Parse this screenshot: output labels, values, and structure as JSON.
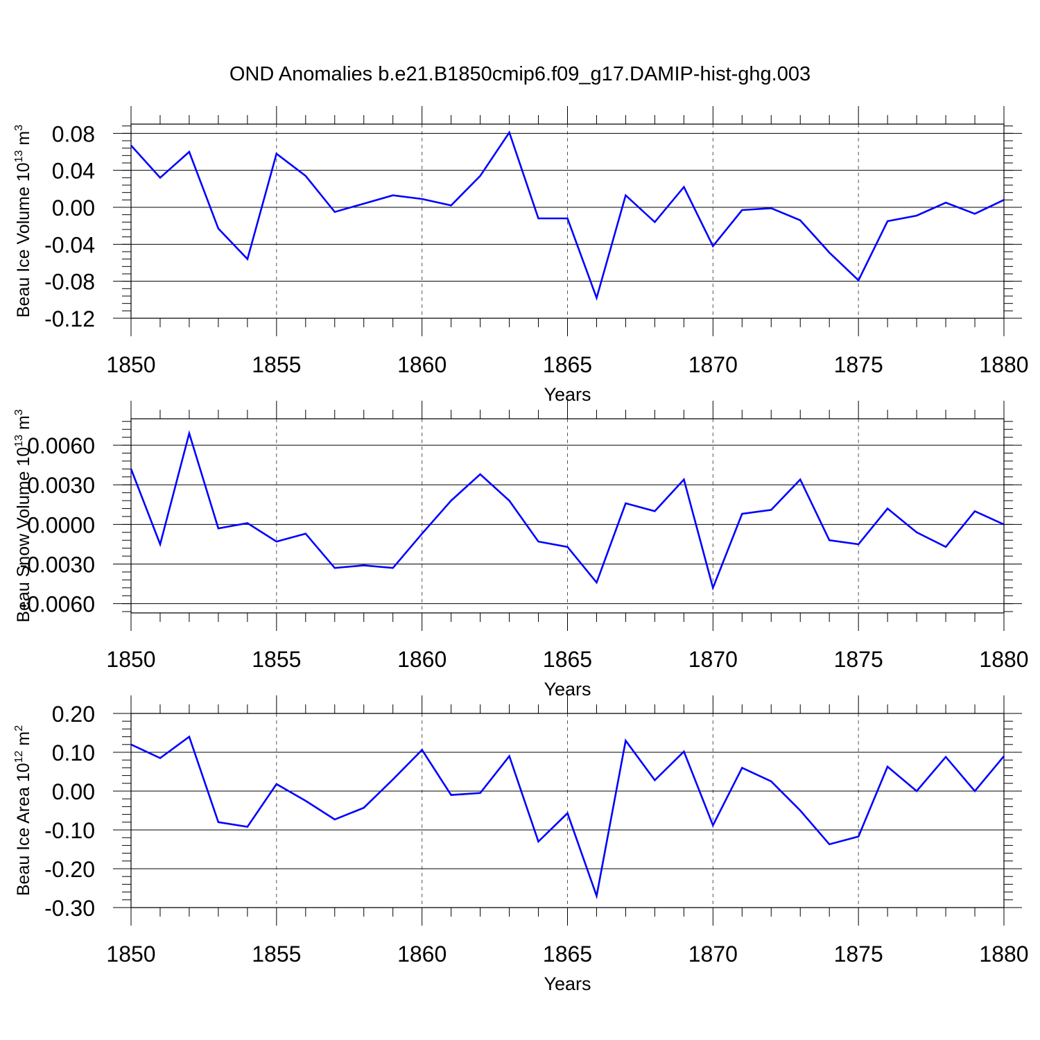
{
  "chart_data": {
    "title": "OND Anomalies b.e21.B1850cmip6.f09_g17.DAMIP-hist-ghg.003",
    "colors": {
      "line": "#0000ff",
      "axes": "#000000",
      "grid": "#555555"
    },
    "panels": [
      {
        "type": "line",
        "ylabel": "Beau Ice Volume 10",
        "ylabel_exp": "13",
        "ylabel_unit": " m",
        "ylabel_unit_exp": "3",
        "xlabel": "Years",
        "xlim": [
          1850,
          1880
        ],
        "ylim": [
          -0.12,
          0.09
        ],
        "yticks": [
          0.08,
          0.04,
          0.0,
          -0.04,
          -0.08,
          -0.12
        ],
        "ytick_labels": [
          "0.08",
          "0.04",
          "0.00",
          "-0.04",
          "-0.08",
          "-0.12"
        ],
        "xticks": [
          1850,
          1855,
          1860,
          1865,
          1870,
          1875,
          1880
        ],
        "xtick_labels": [
          "1850",
          "1855",
          "1860",
          "1865",
          "1870",
          "1875",
          "1880"
        ],
        "x": [
          1850,
          1851,
          1852,
          1853,
          1854,
          1855,
          1856,
          1857,
          1858,
          1859,
          1860,
          1861,
          1862,
          1863,
          1864,
          1865,
          1866,
          1867,
          1868,
          1869,
          1870,
          1871,
          1872,
          1873,
          1874,
          1875,
          1876,
          1877,
          1878,
          1879,
          1880
        ],
        "values": [
          0.067,
          0.032,
          0.06,
          -0.023,
          -0.056,
          0.058,
          0.034,
          -0.005,
          0.004,
          0.013,
          0.009,
          0.002,
          0.034,
          0.081,
          -0.012,
          -0.012,
          -0.098,
          0.013,
          -0.016,
          0.022,
          -0.042,
          -0.003,
          -0.001,
          -0.014,
          -0.049,
          -0.079,
          -0.015,
          -0.009,
          0.005,
          -0.007,
          0.008
        ]
      },
      {
        "type": "line",
        "ylabel": "Beau Snow Volume 10",
        "ylabel_exp": "13",
        "ylabel_unit": " m",
        "ylabel_unit_exp": "3",
        "xlabel": "Years",
        "xlim": [
          1850,
          1880
        ],
        "ylim": [
          -0.0067,
          0.008
        ],
        "yticks": [
          0.006,
          0.003,
          0.0,
          -0.003,
          -0.006
        ],
        "ytick_labels": [
          "0.0060",
          "0.0030",
          "0.0000",
          "-0.0030",
          "-0.0060"
        ],
        "xticks": [
          1850,
          1855,
          1860,
          1865,
          1870,
          1875,
          1880
        ],
        "xtick_labels": [
          "1850",
          "1855",
          "1860",
          "1865",
          "1870",
          "1875",
          "1880"
        ],
        "x": [
          1850,
          1851,
          1852,
          1853,
          1854,
          1855,
          1856,
          1857,
          1858,
          1859,
          1860,
          1861,
          1862,
          1863,
          1864,
          1865,
          1866,
          1867,
          1868,
          1869,
          1870,
          1871,
          1872,
          1873,
          1874,
          1875,
          1876,
          1877,
          1878,
          1879,
          1880
        ],
        "values": [
          0.0042,
          -0.0015,
          0.0069,
          -0.0003,
          0.0001,
          -0.0013,
          -0.0007,
          -0.0033,
          -0.0031,
          -0.0033,
          -0.0007,
          0.0018,
          0.0038,
          0.0018,
          -0.0013,
          -0.0017,
          -0.0044,
          0.0016,
          0.001,
          0.0034,
          -0.0048,
          0.0008,
          0.0011,
          0.0034,
          -0.0012,
          -0.0015,
          0.0012,
          -0.0006,
          -0.0017,
          0.001,
          0.0
        ]
      },
      {
        "type": "line",
        "ylabel": "Beau Ice Area 10",
        "ylabel_exp": "12",
        "ylabel_unit": " m",
        "ylabel_unit_exp": "2",
        "xlabel": "Years",
        "xlim": [
          1850,
          1880
        ],
        "ylim": [
          -0.3,
          0.2
        ],
        "yticks": [
          0.2,
          0.1,
          0.0,
          -0.1,
          -0.2,
          -0.3
        ],
        "ytick_labels": [
          "0.20",
          "0.10",
          "0.00",
          "-0.10",
          "-0.20",
          "-0.30"
        ],
        "xticks": [
          1850,
          1855,
          1860,
          1865,
          1870,
          1875,
          1880
        ],
        "xtick_labels": [
          "1850",
          "1855",
          "1860",
          "1865",
          "1870",
          "1875",
          "1880"
        ],
        "x": [
          1850,
          1851,
          1852,
          1853,
          1854,
          1855,
          1856,
          1857,
          1858,
          1859,
          1860,
          1861,
          1862,
          1863,
          1864,
          1865,
          1866,
          1867,
          1868,
          1869,
          1870,
          1871,
          1872,
          1873,
          1874,
          1875,
          1876,
          1877,
          1878,
          1879,
          1880
        ],
        "values": [
          0.12,
          0.085,
          0.14,
          -0.08,
          -0.092,
          0.018,
          -0.025,
          -0.073,
          -0.043,
          0.03,
          0.106,
          -0.01,
          -0.005,
          0.09,
          -0.13,
          -0.057,
          -0.27,
          0.13,
          0.028,
          0.102,
          -0.088,
          0.06,
          0.025,
          -0.05,
          -0.137,
          -0.117,
          0.063,
          0.0,
          0.088,
          0.0,
          0.09
        ]
      }
    ]
  }
}
